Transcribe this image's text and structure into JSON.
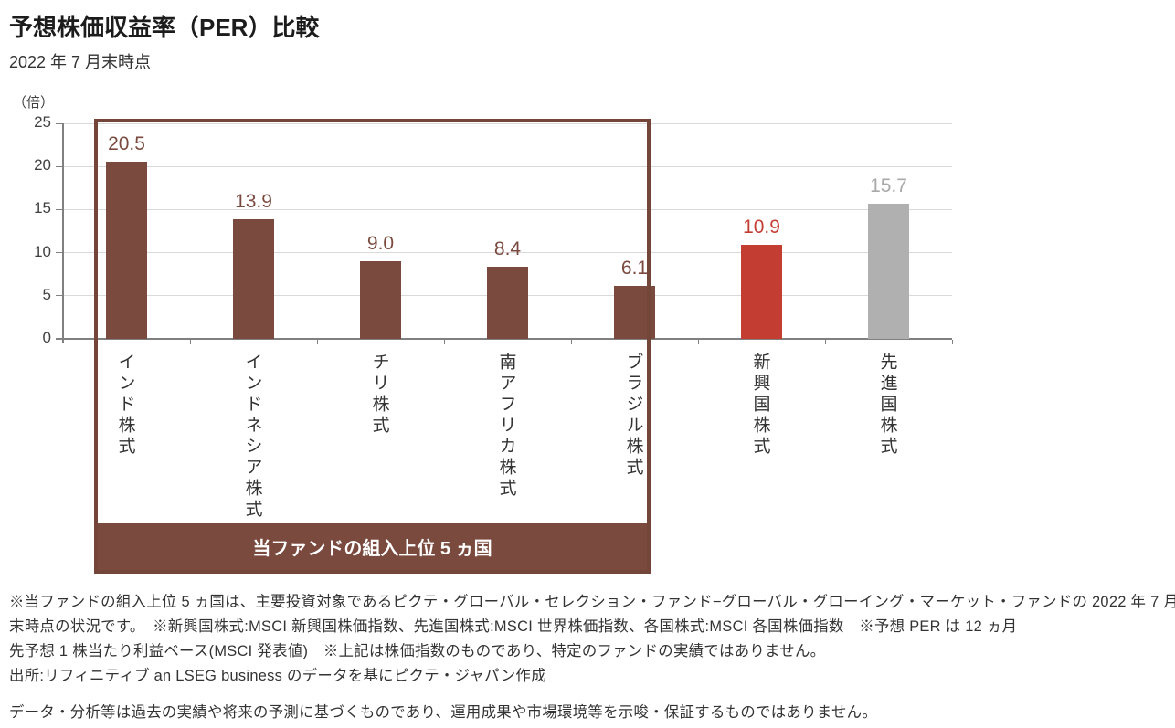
{
  "chart_data": {
    "type": "bar",
    "title": "予想株価収益率（PER）比較",
    "subtitle": "2022 年 7 月末時点",
    "unit_label": "（倍）",
    "ylim": [
      0,
      25
    ],
    "yticks": [
      0,
      5,
      10,
      15,
      20,
      25
    ],
    "grid": "horizontal",
    "categories": [
      "インド株式",
      "インドネシア株式",
      "チリ株式",
      "南アフリカ株式",
      "ブラジル株式",
      "新興国株式",
      "先進国株式"
    ],
    "values": [
      20.5,
      13.9,
      9.0,
      8.4,
      6.1,
      10.9,
      15.7
    ],
    "value_labels": [
      "20.5",
      "13.9",
      "9.0",
      "8.4",
      "6.1",
      "10.9",
      "15.7"
    ],
    "bar_colors": [
      "#7B4A3F",
      "#7B4A3F",
      "#7B4A3F",
      "#7B4A3F",
      "#7B4A3F",
      "#C43D33",
      "#B0B0B0"
    ],
    "label_colors": [
      "#7B4A3F",
      "#7B4A3F",
      "#7B4A3F",
      "#7B4A3F",
      "#7B4A3F",
      "#C43D33",
      "#A9A9A9"
    ],
    "highlight_group": {
      "label": "当ファンドの組入上位 5 ヵ国",
      "indices": [
        0,
        1,
        2,
        3,
        4
      ],
      "color": "#7B4A3F"
    }
  },
  "footnotes": {
    "lines": [
      "※当ファンドの組入上位 5 ヵ国は、主要投資対象であるピクテ・グローバル・セレクション・ファンド−グローバル・グローイング・マーケット・ファンドの 2022 年 7 月",
      "末時点の状況です。　※新興国株式:MSCI 新興国株価指数、先進国株式:MSCI 世界株価指数、各国株式:MSCI 各国株価指数　※予想 PER は 12 ヵ月",
      "先予想 1 株当たり利益ベース(MSCI 発表値)　※上記は株価指数のものであり、特定のファンドの実績ではありません。",
      "出所:リフィニティブ an LSEG business のデータを基にピクテ・ジャパン作成"
    ],
    "disclaimer": "データ・分析等は過去の実績や将来の予測に基づくものであり、運用成果や市場環境等を示唆・保証するものではありません。"
  }
}
